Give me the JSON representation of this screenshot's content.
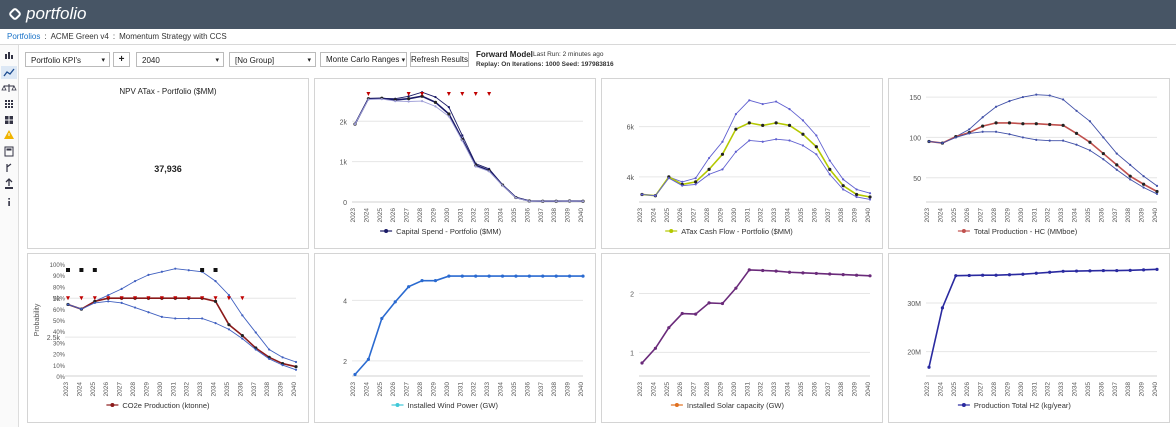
{
  "app": {
    "name": "portfolio"
  },
  "breadcrumb": {
    "root": "Portfolios",
    "sep": ":",
    "item1": "ACME Green v4",
    "item2": "Momentum Strategy with CCS"
  },
  "toolbar": {
    "kpi_select": "Portfolio KPI's",
    "add_label": "+",
    "year_select": "2040",
    "group_select": "[No Group]",
    "mc_ranges": "Monte Carlo Ranges",
    "refresh": "Refresh Results",
    "forward_title": "Forward Model",
    "last_run": "Last Run: 2 minutes ago",
    "replay": "Replay: On Iterations: 1000 Seed: 197983816"
  },
  "kpi": {
    "title": "NPV ATax - Portfolio ($MM)",
    "value": "37,936"
  },
  "years": [
    "2023",
    "2024",
    "2025",
    "2026",
    "2027",
    "2028",
    "2029",
    "2030",
    "2031",
    "2032",
    "2033",
    "2034",
    "2035",
    "2036",
    "2037",
    "2038",
    "2039",
    "2040"
  ],
  "chart_data": [
    {
      "type": "line",
      "legend": "Capital Spend - Portfolio ($MM)",
      "color": "#1a1a66",
      "band_color": "#a0a0d8",
      "ylim": [
        0,
        2800
      ],
      "yticks": [
        0,
        1000,
        2000
      ],
      "ytick_labels": [
        "0",
        "1k",
        "2k"
      ],
      "series": [
        {
          "values": [
            1930,
            2560,
            2570,
            2560,
            2620,
            2720,
            2600,
            2350,
            1650,
            950,
            820,
            430,
            120,
            30,
            20,
            20,
            30,
            25
          ]
        },
        {
          "values": [
            1930,
            2560,
            2570,
            2530,
            2560,
            2620,
            2470,
            2180,
            1550,
            910,
            780,
            420,
            110,
            25,
            20,
            20,
            25,
            20
          ]
        },
        {
          "values": [
            1930,
            2540,
            2550,
            2500,
            2490,
            2500,
            2370,
            2120,
            1520,
            880,
            760,
            410,
            105,
            20,
            20,
            20,
            25,
            20
          ]
        }
      ],
      "markers_top_count": 7
    },
    {
      "type": "line",
      "legend": "ATax Cash Flow - Portfolio ($MM)",
      "color": "#b4c800",
      "band_color": "#6060d0",
      "ylim": [
        3000,
        7500
      ],
      "yticks": [
        4000,
        6000
      ],
      "ytick_labels": [
        "4k",
        "6k"
      ],
      "series": [
        {
          "values": [
            3300,
            3250,
            4000,
            3800,
            3950,
            4750,
            5400,
            6500,
            7050,
            6900,
            7000,
            6700,
            6250,
            5650,
            4650,
            3900,
            3500,
            3350
          ]
        },
        {
          "values": [
            3300,
            3250,
            4000,
            3700,
            3800,
            4300,
            4900,
            5900,
            6150,
            6050,
            6150,
            6050,
            5700,
            5200,
            4300,
            3650,
            3300,
            3200
          ]
        },
        {
          "values": [
            3300,
            3250,
            3950,
            3650,
            3700,
            4100,
            4300,
            5000,
            5450,
            5400,
            5500,
            5450,
            5250,
            4900,
            4100,
            3500,
            3200,
            3100
          ]
        }
      ]
    },
    {
      "type": "line",
      "legend": "Total Production - HC (MMboe)",
      "color": "#c0504d",
      "band_color": "#4050a8",
      "ylim": [
        20,
        160
      ],
      "yticks": [
        50,
        100,
        150
      ],
      "ytick_labels": [
        "50",
        "100",
        "150"
      ],
      "series": [
        {
          "values": [
            95,
            93,
            101,
            110,
            125,
            138,
            145,
            150,
            153,
            152,
            147,
            133,
            120,
            100,
            80,
            66,
            52,
            40
          ]
        },
        {
          "values": [
            95,
            93,
            101,
            106,
            114,
            118,
            118,
            117,
            117,
            116,
            115,
            105,
            94,
            80,
            66,
            52,
            42,
            33
          ]
        },
        {
          "values": [
            95,
            93,
            100,
            105,
            107,
            107,
            104,
            100,
            97,
            96,
            96,
            91,
            84,
            73,
            60,
            48,
            38,
            30
          ]
        }
      ]
    },
    {
      "type": "line",
      "legend": "CO2e Production (ktonne)",
      "color": "#8b1a1a",
      "band_color": "#4060c0",
      "ylim": [
        0,
        7200
      ],
      "yticks": [
        2500,
        5000
      ],
      "ytick_labels": [
        "2.5k",
        "5k"
      ],
      "y2_label": "Probability",
      "y2ticks": [
        "0%",
        "10%",
        "20%",
        "30%",
        "40%",
        "50%",
        "60%",
        "70%",
        "80%",
        "90%",
        "100%"
      ],
      "series": [
        {
          "values": [
            4600,
            4300,
            4800,
            5200,
            5600,
            6100,
            6500,
            6700,
            6900,
            6800,
            6700,
            6100,
            5200,
            3900,
            2800,
            1700,
            1200,
            900
          ]
        },
        {
          "values": [
            4600,
            4300,
            4800,
            5000,
            5000,
            5000,
            5000,
            5000,
            5000,
            5000,
            5000,
            4800,
            3300,
            2600,
            1800,
            1200,
            800,
            600
          ]
        },
        {
          "values": [
            4600,
            4300,
            4700,
            4800,
            4700,
            4400,
            4100,
            3800,
            3700,
            3700,
            3700,
            3400,
            3000,
            2400,
            1700,
            1100,
            700,
            400
          ]
        }
      ]
    },
    {
      "type": "line",
      "legend": "Installed Wind Power (GW)",
      "color": "#2a6ad0",
      "marker_legend_color": "#40c8d8",
      "ylim": [
        1.5,
        5.2
      ],
      "yticks": [
        2,
        4
      ],
      "ytick_labels": [
        "2",
        "4"
      ],
      "series": [
        {
          "values": [
            1.55,
            2.05,
            3.4,
            3.95,
            4.45,
            4.65,
            4.65,
            4.8,
            4.8,
            4.8,
            4.8,
            4.8,
            4.8,
            4.8,
            4.8,
            4.8,
            4.8,
            4.8
          ]
        }
      ]
    },
    {
      "type": "line",
      "legend": "Installed Solar capacity (GW)",
      "color": "#6a2a7a",
      "marker_legend_color": "#e07020",
      "ylim": [
        0.6,
        2.5
      ],
      "yticks": [
        1,
        2
      ],
      "ytick_labels": [
        "1",
        "2"
      ],
      "series": [
        {
          "values": [
            0.82,
            1.07,
            1.42,
            1.66,
            1.65,
            1.84,
            1.83,
            2.09,
            2.4,
            2.39,
            2.38,
            2.36,
            2.35,
            2.34,
            2.33,
            2.32,
            2.31,
            2.3
          ]
        }
      ]
    },
    {
      "type": "line",
      "legend": "Production Total H2 (kg/year)",
      "color": "#2a2aa0",
      "ylim": [
        15000000,
        38000000
      ],
      "yticks": [
        20000000,
        30000000
      ],
      "ytick_labels": [
        "20M",
        "30M"
      ],
      "series": [
        {
          "values": [
            16800000,
            29000000,
            35600000,
            35650000,
            35700000,
            35700000,
            35800000,
            35900000,
            36100000,
            36300000,
            36500000,
            36550000,
            36600000,
            36650000,
            36650000,
            36700000,
            36800000,
            36900000
          ]
        }
      ]
    }
  ]
}
